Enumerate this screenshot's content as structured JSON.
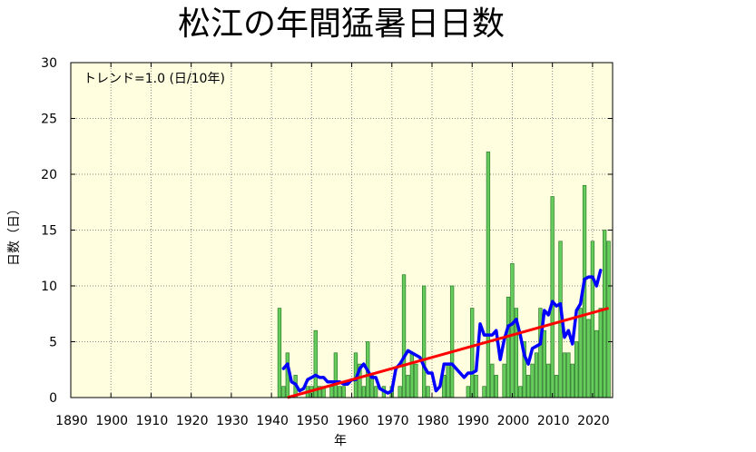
{
  "chart_data": {
    "type": "bar",
    "title": "松江の年間猛暑日日数",
    "xlabel": "年",
    "ylabel": "日数（日）",
    "annotation": "トレンド=1.0 (日/10年)",
    "xlim": [
      1890,
      2025
    ],
    "ylim": [
      0,
      30
    ],
    "xticks": [
      1890,
      1900,
      1910,
      1920,
      1930,
      1940,
      1950,
      1960,
      1970,
      1980,
      1990,
      2000,
      2010,
      2020
    ],
    "yticks": [
      0,
      5,
      10,
      15,
      20,
      25,
      30
    ],
    "grid": true,
    "x": [
      1941,
      1942,
      1943,
      1944,
      1945,
      1946,
      1947,
      1948,
      1949,
      1950,
      1951,
      1952,
      1953,
      1954,
      1955,
      1956,
      1957,
      1958,
      1959,
      1960,
      1961,
      1962,
      1963,
      1964,
      1965,
      1966,
      1967,
      1968,
      1969,
      1970,
      1971,
      1972,
      1973,
      1974,
      1975,
      1976,
      1977,
      1978,
      1979,
      1980,
      1981,
      1982,
      1983,
      1984,
      1985,
      1986,
      1987,
      1988,
      1989,
      1990,
      1991,
      1992,
      1993,
      1994,
      1995,
      1996,
      1997,
      1998,
      1999,
      2000,
      2001,
      2002,
      2003,
      2004,
      2005,
      2006,
      2007,
      2008,
      2009,
      2010,
      2011,
      2012,
      2013,
      2014,
      2015,
      2016,
      2017,
      2018,
      2019,
      2020,
      2021,
      2022,
      2023,
      2024
    ],
    "values": [
      0,
      8,
      1,
      4,
      0,
      2,
      0,
      0,
      1,
      1,
      6,
      1,
      1,
      0,
      1,
      4,
      1,
      1,
      0,
      0,
      4,
      3,
      1,
      5,
      2,
      1,
      0,
      1,
      0,
      1,
      0,
      1,
      11,
      2,
      4,
      3,
      0,
      10,
      1,
      0,
      0,
      0,
      2,
      3,
      10,
      0,
      0,
      0,
      1,
      8,
      2,
      0,
      1,
      22,
      3,
      2,
      0,
      3,
      9,
      12,
      8,
      1,
      5,
      2,
      3,
      4,
      8,
      6,
      3,
      18,
      2,
      14,
      4,
      4,
      3,
      5,
      8,
      19,
      7,
      14,
      6,
      8,
      15,
      14
    ],
    "moving_average": {
      "x": [
        1943,
        1944,
        1945,
        1946,
        1947,
        1948,
        1949,
        1950,
        1951,
        1952,
        1953,
        1954,
        1955,
        1956,
        1957,
        1958,
        1959,
        1960,
        1961,
        1962,
        1963,
        1964,
        1965,
        1966,
        1967,
        1968,
        1969,
        1970,
        1971,
        1972,
        1973,
        1974,
        1975,
        1976,
        1977,
        1978,
        1979,
        1980,
        1981,
        1982,
        1983,
        1984,
        1985,
        1986,
        1987,
        1988,
        1989,
        1990,
        1991,
        1992,
        1993,
        1994,
        1995,
        1996,
        1997,
        1998,
        1999,
        2000,
        2001,
        2002,
        2003,
        2004,
        2005,
        2006,
        2007,
        2008,
        2009,
        2010,
        2011,
        2012,
        2013,
        2014,
        2015,
        2016,
        2017,
        2018,
        2019,
        2020,
        2021,
        2022
      ],
      "values": [
        2.6,
        3.0,
        1.4,
        1.2,
        0.6,
        0.8,
        1.6,
        1.8,
        2.0,
        1.8,
        1.8,
        1.4,
        1.4,
        1.4,
        1.4,
        1.2,
        1.2,
        1.6,
        1.6,
        2.6,
        3.0,
        2.4,
        1.8,
        1.8,
        0.8,
        0.6,
        0.4,
        0.6,
        2.6,
        3.0,
        3.6,
        4.2,
        4.0,
        3.8,
        3.6,
        2.8,
        2.2,
        2.2,
        0.6,
        1.0,
        3.0,
        3.0,
        3.0,
        2.6,
        2.2,
        1.8,
        2.2,
        2.2,
        2.4,
        6.6,
        5.6,
        5.6,
        5.6,
        6.0,
        3.4,
        5.2,
        6.4,
        6.6,
        7.0,
        5.6,
        3.8,
        3.0,
        4.4,
        4.6,
        4.8,
        7.8,
        7.4,
        8.6,
        8.2,
        8.4,
        5.4,
        6.0,
        4.8,
        7.8,
        8.4,
        10.6,
        10.8,
        10.8,
        10.0,
        11.4
      ]
    },
    "trend": {
      "x": [
        1944,
        2024
      ],
      "values": [
        0.0,
        8.0
      ]
    },
    "colors": {
      "plot_background": "#ffffe0",
      "bar_fill": "#66cc5c",
      "bar_edge": "#2a7a2a",
      "moving_average": "#0000ff",
      "trend": "#ff0000",
      "grid": "#8a8a8a",
      "frame": "#000000"
    }
  }
}
